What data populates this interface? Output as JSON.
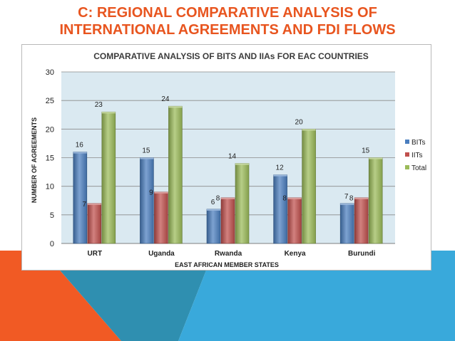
{
  "slide": {
    "title_line1": "C: REGIONAL COMPARATIVE ANALYSIS OF",
    "title_line2": "INTERNATIONAL AGREEMENTS AND FDI FLOWS",
    "colors": {
      "title": "#e8551f",
      "orange_accent": "#f15a24",
      "teal_dark": "#2f8fb0",
      "teal_light": "#39a9db"
    }
  },
  "chart_data": {
    "type": "bar",
    "title": "COMPARATIVE ANALYSIS OF BITS AND IIAs  FOR EAC COUNTRIES",
    "xlabel": "EAST AFRICAN MEMBER STATES",
    "ylabel": "NUMBER OF AGREEMENTS",
    "ylim": [
      0,
      30
    ],
    "yticks": [
      0,
      5,
      10,
      15,
      20,
      25,
      30
    ],
    "grid": true,
    "legend_position": "right",
    "categories": [
      "URT",
      "Uganda",
      "Rwanda",
      "Kenya",
      "Burundi"
    ],
    "series": [
      {
        "name": "BITs",
        "values": [
          16,
          15,
          6,
          12,
          7
        ],
        "color": "#4a7ebf"
      },
      {
        "name": "IITs",
        "values": [
          7,
          9,
          8,
          8,
          8
        ],
        "color": "#c0504d"
      },
      {
        "name": "Total",
        "values": [
          23,
          24,
          14,
          20,
          15
        ],
        "color": "#9bbb59"
      }
    ]
  }
}
